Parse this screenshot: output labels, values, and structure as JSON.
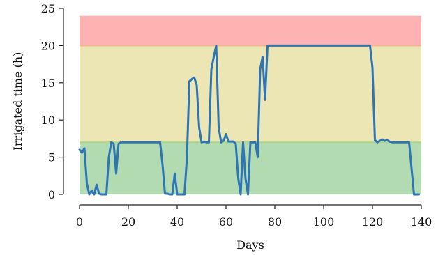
{
  "chart_data": {
    "type": "line",
    "title": "",
    "xlabel": "Days",
    "ylabel": "Irrigated time (h)",
    "xlim": [
      0,
      140
    ],
    "ylim": [
      0,
      25
    ],
    "xticks": [
      0,
      20,
      40,
      60,
      80,
      100,
      120,
      140
    ],
    "yticks": [
      0,
      5,
      10,
      15,
      20,
      25
    ],
    "grid": false,
    "legend": "none",
    "bands": [
      {
        "from": 0,
        "to": 7,
        "color": "#b2dbb2"
      },
      {
        "from": 7,
        "to": 20,
        "color": "#ebe6b3"
      },
      {
        "from": 20,
        "to": 24,
        "color": "#feb2b2"
      }
    ],
    "band_edges": [
      {
        "y": 7,
        "color": "#a9d68a"
      },
      {
        "y": 20,
        "color": "#f2b48a"
      }
    ],
    "series": [
      {
        "color": "#2e75b6",
        "x": [
          0,
          1,
          2,
          3,
          4,
          5,
          6,
          7,
          8,
          9,
          10,
          11,
          12,
          13,
          14,
          15,
          16,
          17,
          18,
          19,
          20,
          21,
          22,
          23,
          24,
          25,
          26,
          27,
          28,
          29,
          30,
          31,
          32,
          33,
          34,
          35,
          36,
          37,
          38,
          39,
          40,
          41,
          42,
          43,
          44,
          45,
          46,
          47,
          48,
          49,
          50,
          51,
          52,
          53,
          54,
          55,
          56,
          57,
          58,
          59,
          60,
          61,
          62,
          63,
          64,
          65,
          66,
          67,
          68,
          69,
          70,
          71,
          72,
          73,
          74,
          75,
          76,
          77,
          78,
          79,
          80,
          81,
          82,
          83,
          84,
          85,
          86,
          87,
          88,
          89,
          90,
          91,
          92,
          93,
          94,
          95,
          96,
          97,
          98,
          99,
          100,
          101,
          102,
          103,
          104,
          105,
          106,
          107,
          108,
          109,
          110,
          111,
          112,
          113,
          114,
          115,
          116,
          117,
          118,
          119,
          120,
          121,
          122,
          123,
          124,
          125,
          126,
          127,
          128,
          129,
          130,
          131,
          132,
          133,
          134,
          135,
          136,
          137,
          138,
          139
        ],
        "y": [
          6.0,
          5.6,
          6.2,
          1.5,
          0.0,
          0.5,
          0.0,
          1.3,
          0.1,
          0.0,
          0.0,
          0.0,
          5.0,
          7.0,
          6.8,
          2.8,
          6.8,
          7.0,
          7.0,
          7.0,
          7.0,
          7.0,
          7.0,
          7.0,
          7.0,
          7.0,
          7.0,
          7.0,
          7.0,
          7.0,
          7.0,
          7.0,
          7.0,
          7.0,
          4.0,
          0.1,
          0.1,
          0.0,
          0.0,
          2.8,
          0.0,
          0.0,
          0.0,
          0.0,
          5.0,
          15.2,
          15.5,
          15.7,
          14.7,
          9.0,
          7.0,
          7.1,
          7.0,
          7.0,
          16.8,
          18.5,
          20.0,
          9.0,
          7.0,
          7.2,
          8.1,
          7.1,
          7.1,
          7.1,
          6.8,
          2.2,
          0.0,
          7.0,
          2.1,
          0.0,
          7.0,
          7.0,
          7.0,
          5.0,
          16.8,
          18.5,
          12.7,
          20.0,
          20.0,
          20.0,
          20.0,
          20.0,
          20.0,
          20.0,
          20.0,
          20.0,
          20.0,
          20.0,
          20.0,
          20.0,
          20.0,
          20.0,
          20.0,
          20.0,
          20.0,
          20.0,
          20.0,
          20.0,
          20.0,
          20.0,
          20.0,
          20.0,
          20.0,
          20.0,
          20.0,
          20.0,
          20.0,
          20.0,
          20.0,
          20.0,
          20.0,
          20.0,
          20.0,
          20.0,
          20.0,
          20.0,
          20.0,
          20.0,
          20.0,
          20.0,
          17.0,
          7.3,
          7.0,
          7.2,
          7.4,
          7.2,
          7.3,
          7.1,
          7.0,
          7.0,
          7.0,
          7.0,
          7.0,
          7.0,
          7.0,
          7.0,
          3.5,
          0.0,
          0.0,
          0.0
        ]
      }
    ]
  }
}
